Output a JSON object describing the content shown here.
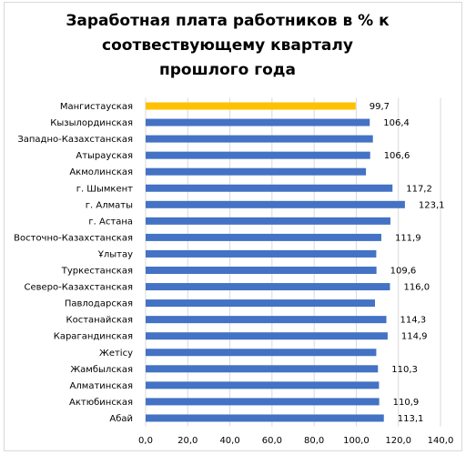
{
  "chart_data": {
    "type": "bar",
    "orientation": "horizontal",
    "title": "Заработная плата работников в % к соотвествующему кварталу прошлого года",
    "categories": [
      "Мангистауская",
      "Кызылординская",
      "Западно-Казахстанская",
      "Атырауская",
      "Акмолинская",
      "г. Шымкент",
      "г. Алматы",
      "г. Астана",
      "Восточно-Казахстанская",
      "Ұлытау",
      "Туркестанская",
      "Северо-Казахстанская",
      "Павлодарская",
      "Костанайская",
      "Карагандинская",
      "Жетісу",
      "Жамбылская",
      "Алматинская",
      "Актюбинская",
      "Абай"
    ],
    "values": [
      99.7,
      106.4,
      107.9,
      106.6,
      104.6,
      117.2,
      123.1,
      116.2,
      111.9,
      109.5,
      109.6,
      116.0,
      108.9,
      114.3,
      114.9,
      109.5,
      110.3,
      110.8,
      110.9,
      113.1
    ],
    "labels": [
      "99,7",
      "106,4",
      "",
      "106,6",
      "",
      "117,2",
      "123,1",
      "",
      "111,9",
      "",
      "109,6",
      "116,0",
      "",
      "114,3",
      "114,9",
      "",
      "110,3",
      "",
      "110,9",
      "113,1"
    ],
    "highlight_index": 0,
    "colors": {
      "bar": "#4472c4",
      "highlight": "#ffc000",
      "grid": "#d9d9d9"
    },
    "xlim": [
      0,
      140
    ],
    "xticks": [
      "0,0",
      "20,0",
      "40,0",
      "60,0",
      "80,0",
      "100,0",
      "120,0",
      "140,0"
    ],
    "grid": true,
    "legend": "none"
  }
}
